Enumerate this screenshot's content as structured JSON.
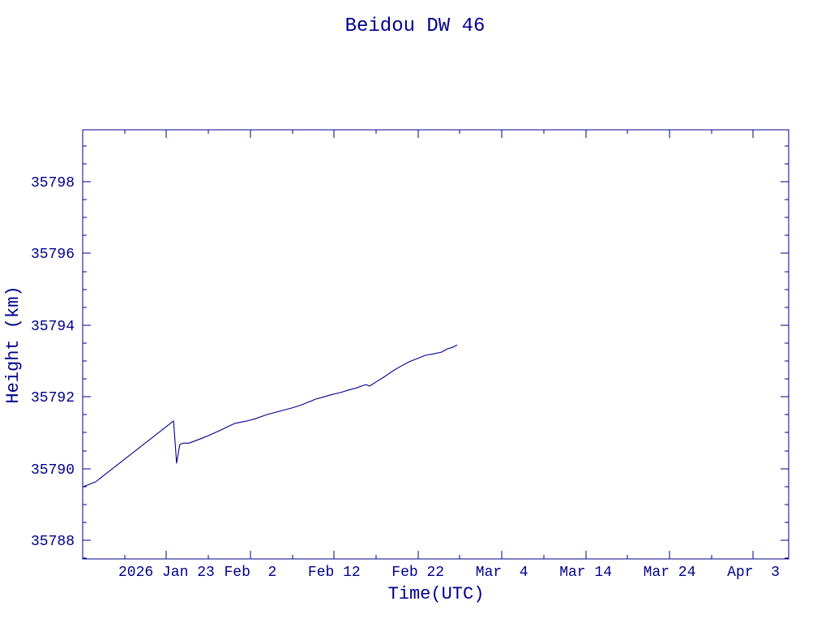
{
  "chart_data": {
    "type": "line",
    "title": "Beidou DW 46",
    "xlabel": "Time(UTC)",
    "ylabel": "Height (km)",
    "xlim": [
      "2026-01-13 00:00",
      "2026-04-07 05:00"
    ],
    "ylim": [
      35787.48,
      35799.45
    ],
    "xticks": [
      {
        "value": "2026-01-23 00:00",
        "label": "2026 Jan 23"
      },
      {
        "value": "2026-02-02 00:00",
        "label": "Feb  2"
      },
      {
        "value": "2026-02-12 00:00",
        "label": "Feb 12"
      },
      {
        "value": "2026-02-22 00:00",
        "label": "Feb 22"
      },
      {
        "value": "2026-03-04 00:00",
        "label": "Mar  4"
      },
      {
        "value": "2026-03-14 00:00",
        "label": "Mar 14"
      },
      {
        "value": "2026-03-24 00:00",
        "label": "Mar 24"
      },
      {
        "value": "2026-04-03 00:00",
        "label": "Apr  3"
      }
    ],
    "yticks": [
      35788,
      35790,
      35792,
      35794,
      35796,
      35798
    ],
    "grid": false,
    "colors": {
      "text": "#00008b",
      "axes": "#00008b",
      "line": "#00008b"
    },
    "series": [
      {
        "x": [
          "2026-01-13 00:00",
          "2026-01-14 13:00",
          "2026-01-23 20:00",
          "2026-01-24 05:00",
          "2026-01-24 14:00",
          "2026-01-25 00:00",
          "2026-01-25 16:00",
          "2026-01-26 20:00",
          "2026-01-28 00:00",
          "2026-01-29 06:00",
          "2026-01-30 12:00",
          "2026-01-31 04:00",
          "2026-01-31 23:00",
          "2026-02-01 15:00",
          "2026-02-02 14:00",
          "2026-02-04 01:00",
          "2026-02-05 12:00",
          "2026-02-06 23:00",
          "2026-02-07 22:00",
          "2026-02-08 21:00",
          "2026-02-09 20:00",
          "2026-02-10 19:00",
          "2026-02-11 19:00",
          "2026-02-12 18:00",
          "2026-02-13 17:00",
          "2026-02-14 16:00",
          "2026-02-15 11:00",
          "2026-02-15 20:00",
          "2026-02-16 05:00",
          "2026-02-17 02:00",
          "2026-02-18 01:00",
          "2026-02-19 01:00",
          "2026-02-20 00:00",
          "2026-02-20 23:00",
          "2026-02-21 22:00",
          "2026-02-22 21:00",
          "2026-02-23 21:00",
          "2026-02-24 20:00",
          "2026-02-25 12:00",
          "2026-02-26 02:00",
          "2026-02-26 16:00"
        ],
        "y": [
          35789.49,
          35789.63,
          35791.33,
          35790.15,
          35790.67,
          35790.71,
          35790.71,
          35790.81,
          35790.92,
          35791.05,
          35791.19,
          35791.26,
          35791.3,
          35791.33,
          35791.39,
          35791.51,
          35791.6,
          35791.69,
          35791.76,
          35791.85,
          35791.94,
          35792.0,
          35792.07,
          35792.12,
          35792.19,
          35792.25,
          35792.32,
          35792.34,
          35792.3,
          35792.43,
          35792.57,
          35792.73,
          35792.86,
          35792.98,
          35793.07,
          35793.16,
          35793.2,
          35793.25,
          35793.34,
          35793.38,
          35793.45
        ]
      }
    ]
  }
}
